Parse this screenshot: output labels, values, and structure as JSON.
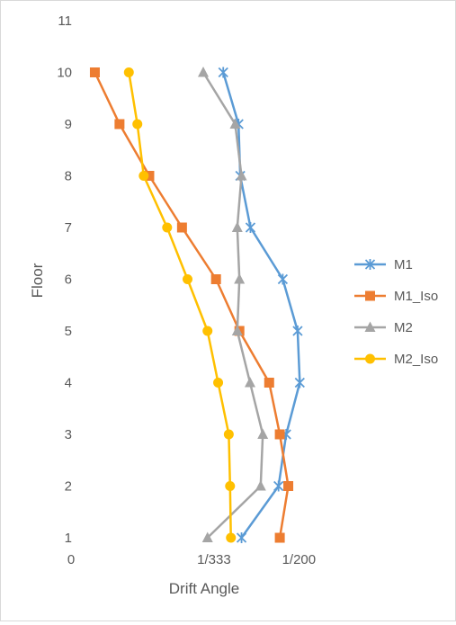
{
  "chart_data": {
    "type": "scatter",
    "title": "",
    "xlabel": "Drift Angle",
    "ylabel": "Floor",
    "xlim": [
      0,
      0.0055
    ],
    "ylim": [
      1,
      11
    ],
    "x_tick_values": [
      0,
      0.003003,
      0.005
    ],
    "x_tick_labels": [
      "0",
      "1/333",
      "1/200"
    ],
    "y_ticks": [
      1,
      2,
      3,
      4,
      5,
      6,
      7,
      8,
      9,
      10,
      11
    ],
    "grid": false,
    "legend_position": "right",
    "series": [
      {
        "name": "M1",
        "color": "#5b9bd5",
        "marker": "star",
        "x": [
          0.00365,
          0.00452,
          0.0047,
          0.00502,
          0.00497,
          0.00462,
          0.00386,
          0.00362,
          0.00358,
          0.00322
        ],
        "y": [
          1,
          2,
          3,
          4,
          5,
          6,
          7,
          8,
          9,
          10
        ]
      },
      {
        "name": "M1_Iso",
        "color": "#ed7d31",
        "marker": "square",
        "x": [
          0.00455,
          0.00475,
          0.00455,
          0.0043,
          0.0036,
          0.00305,
          0.00225,
          0.00148,
          0.00078,
          0.0002
        ],
        "y": [
          1,
          2,
          3,
          4,
          5,
          6,
          7,
          8,
          9,
          10
        ]
      },
      {
        "name": "M2",
        "color": "#a5a5a5",
        "marker": "triangle",
        "x": [
          0.00285,
          0.0041,
          0.00415,
          0.00385,
          0.00355,
          0.0036,
          0.00355,
          0.00365,
          0.0035,
          0.00275
        ],
        "y": [
          1,
          2,
          3,
          4,
          5,
          6,
          7,
          8,
          9,
          10
        ]
      },
      {
        "name": "M2_Iso",
        "color": "#ffc000",
        "marker": "circle",
        "x": [
          0.0034,
          0.00338,
          0.00335,
          0.0031,
          0.00285,
          0.00238,
          0.0019,
          0.00135,
          0.0012,
          0.001
        ],
        "y": [
          1,
          2,
          3,
          4,
          5,
          6,
          7,
          8,
          9,
          10
        ]
      }
    ]
  }
}
